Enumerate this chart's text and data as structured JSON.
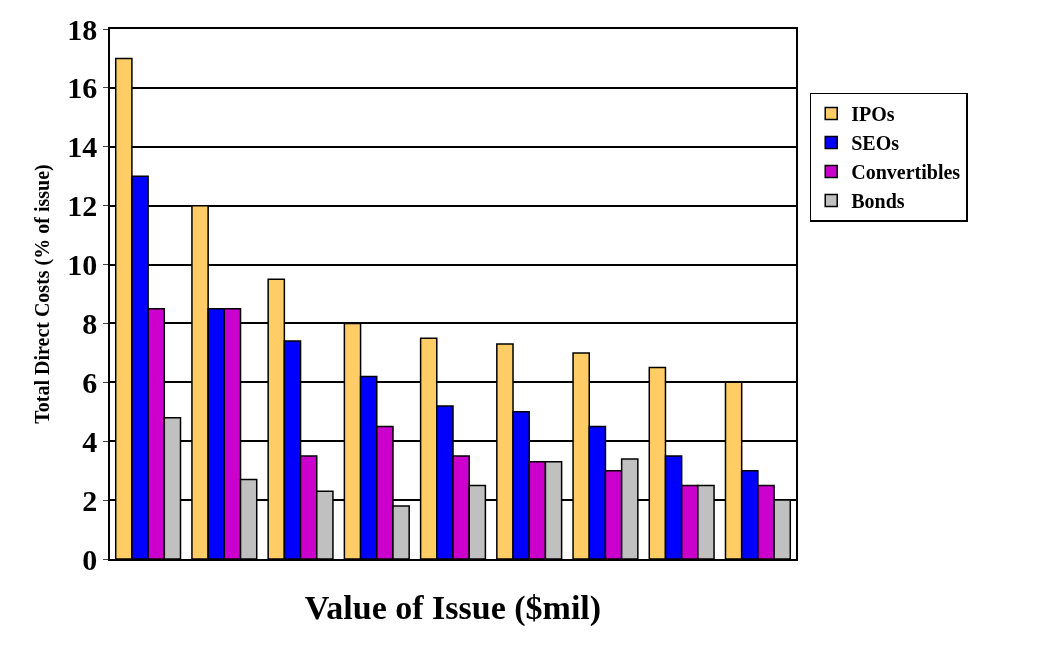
{
  "chart_data": {
    "type": "bar",
    "xlabel": "Value of Issue ($mil)",
    "ylabel": "Total Direct Costs (% of issue)",
    "categories": [
      null,
      null,
      null,
      null,
      null,
      null,
      null,
      null,
      null
    ],
    "series": [
      {
        "name": "IPOs",
        "color": "#ffcc66",
        "values": [
          17,
          12,
          9.5,
          8,
          7.5,
          7.3,
          7,
          6.5,
          6
        ]
      },
      {
        "name": "SEOs",
        "color": "#0000ff",
        "values": [
          13,
          8.5,
          7.4,
          6.2,
          5.2,
          5,
          4.5,
          3.5,
          3
        ]
      },
      {
        "name": "Convertibles",
        "color": "#cc00cc",
        "values": [
          8.5,
          8.5,
          3.5,
          4.5,
          3.5,
          3.3,
          3,
          2.5,
          2.5
        ]
      },
      {
        "name": "Bonds",
        "color": "#c0c0c0",
        "values": [
          4.8,
          2.7,
          2.3,
          1.8,
          2.5,
          3.3,
          3.4,
          2.5,
          2
        ]
      }
    ],
    "ylim": [
      0,
      18
    ],
    "yticks": [
      0,
      2,
      4,
      6,
      8,
      10,
      12,
      14,
      16,
      18
    ],
    "grid": "y",
    "legend": "right",
    "tick_labels": "y"
  }
}
